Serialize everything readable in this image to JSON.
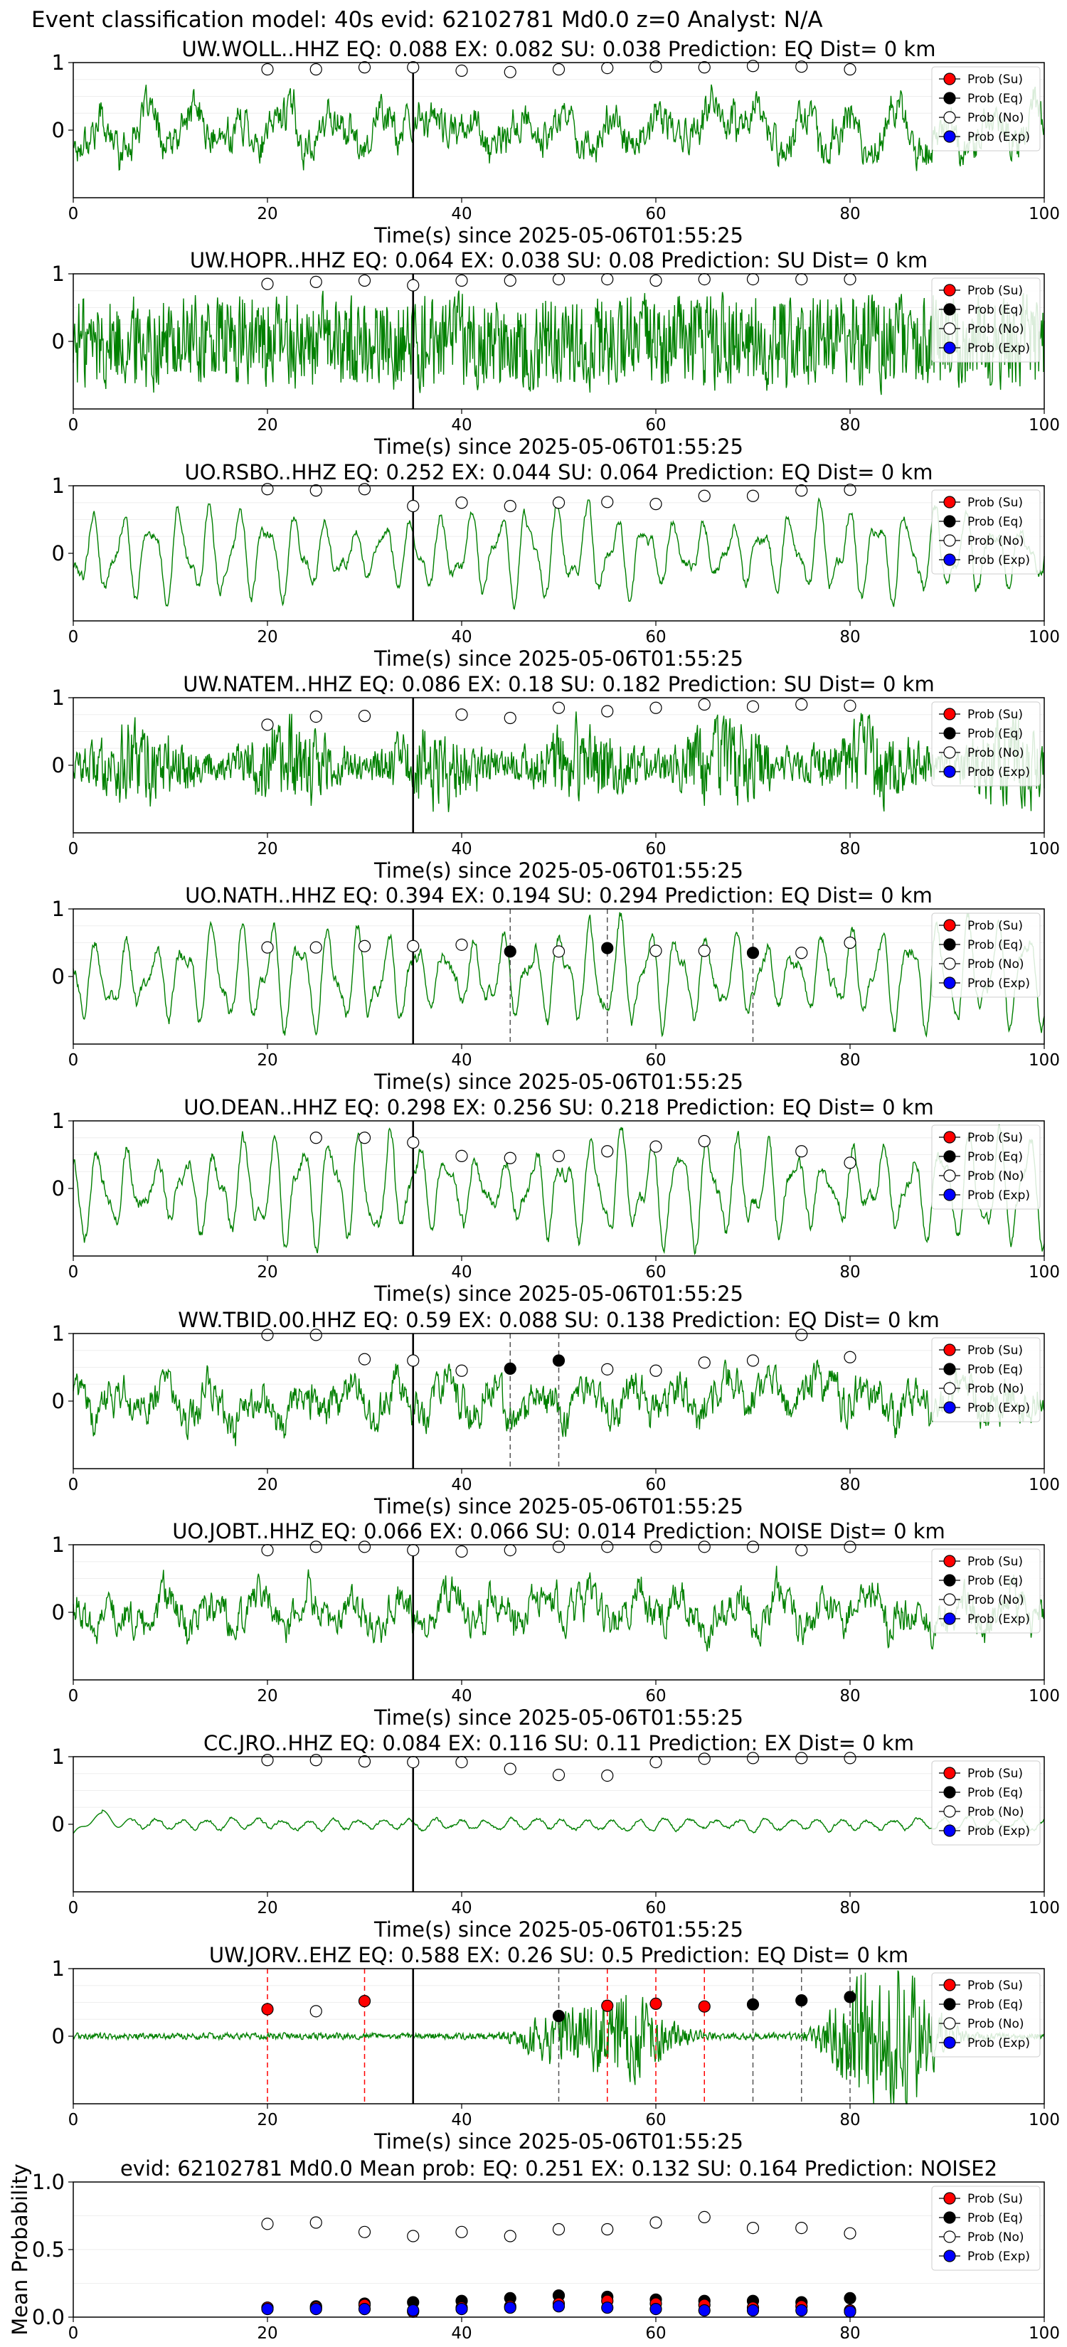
{
  "suptitle": "Event classification model: 40s evid: 62102781 Md0.0 z=0 Analyst: N/A",
  "xlabel": "Time(s) since 2025-05-06T01:55:25",
  "legend": [
    "Prob (Su)",
    "Prob (Eq)",
    "Prob (No)",
    "Prob (Exp)"
  ],
  "colors": {
    "su": "#ff0000",
    "eq": "#000000",
    "no": "#ffffff",
    "exp": "#0000ff",
    "trace": "#008000",
    "pick": "#000000",
    "grid": "#eeeeee"
  },
  "chart_data": [
    {
      "type": "line",
      "station": "UW.WOLL..HHZ",
      "title": "UW.WOLL..HHZ   EQ: 0.088  EX: 0.082  SU: 0.038   Prediction: EQ    Dist= 0 km",
      "xlim": [
        0,
        100
      ],
      "ylim": [
        -1,
        1
      ],
      "yticks": [
        0,
        1
      ],
      "xticks": [
        0,
        20,
        40,
        60,
        80,
        100
      ],
      "pick_time": 35,
      "trace_style": "broadband_noise",
      "amplitude": 0.8,
      "probs": [
        {
          "t": 20,
          "class": "No",
          "p": 0.9
        },
        {
          "t": 25,
          "class": "No",
          "p": 0.9
        },
        {
          "t": 30,
          "class": "No",
          "p": 0.93
        },
        {
          "t": 35,
          "class": "No",
          "p": 0.93
        },
        {
          "t": 40,
          "class": "No",
          "p": 0.88
        },
        {
          "t": 45,
          "class": "No",
          "p": 0.86
        },
        {
          "t": 50,
          "class": "No",
          "p": 0.9
        },
        {
          "t": 55,
          "class": "No",
          "p": 0.92
        },
        {
          "t": 60,
          "class": "No",
          "p": 0.94
        },
        {
          "t": 65,
          "class": "No",
          "p": 0.93
        },
        {
          "t": 70,
          "class": "No",
          "p": 0.95
        },
        {
          "t": 75,
          "class": "No",
          "p": 0.94
        },
        {
          "t": 80,
          "class": "No",
          "p": 0.9
        }
      ]
    },
    {
      "type": "line",
      "station": "UW.HOPR..HHZ",
      "title": "UW.HOPR..HHZ   EQ: 0.064  EX: 0.038  SU: 0.08   Prediction: SU    Dist= 0 km",
      "xlim": [
        0,
        100
      ],
      "ylim": [
        -1,
        1
      ],
      "yticks": [
        0,
        1
      ],
      "xticks": [
        0,
        20,
        40,
        60,
        80,
        100
      ],
      "pick_time": 35,
      "trace_style": "dense_noise",
      "amplitude": 0.9,
      "probs": [
        {
          "t": 20,
          "class": "No",
          "p": 0.85
        },
        {
          "t": 25,
          "class": "No",
          "p": 0.88
        },
        {
          "t": 30,
          "class": "No",
          "p": 0.9
        },
        {
          "t": 35,
          "class": "No",
          "p": 0.83
        },
        {
          "t": 40,
          "class": "No",
          "p": 0.9
        },
        {
          "t": 45,
          "class": "No",
          "p": 0.9
        },
        {
          "t": 50,
          "class": "No",
          "p": 0.92
        },
        {
          "t": 55,
          "class": "No",
          "p": 0.92
        },
        {
          "t": 60,
          "class": "No",
          "p": 0.9
        },
        {
          "t": 65,
          "class": "No",
          "p": 0.92
        },
        {
          "t": 70,
          "class": "No",
          "p": 0.92
        },
        {
          "t": 75,
          "class": "No",
          "p": 0.92
        },
        {
          "t": 80,
          "class": "No",
          "p": 0.92
        }
      ]
    },
    {
      "type": "line",
      "station": "UO.RSBO..HHZ",
      "title": "UO.RSBO..HHZ   EQ: 0.252  EX: 0.044  SU: 0.064   Prediction: EQ    Dist= 0 km",
      "xlim": [
        0,
        100
      ],
      "ylim": [
        -1,
        1
      ],
      "yticks": [
        0,
        1
      ],
      "xticks": [
        0,
        20,
        40,
        60,
        80,
        100
      ],
      "pick_time": 35,
      "trace_style": "smooth_oscillation",
      "amplitude": 0.7,
      "probs": [
        {
          "t": 20,
          "class": "No",
          "p": 0.95
        },
        {
          "t": 25,
          "class": "No",
          "p": 0.93
        },
        {
          "t": 30,
          "class": "No",
          "p": 0.95
        },
        {
          "t": 35,
          "class": "No",
          "p": 0.7
        },
        {
          "t": 40,
          "class": "No",
          "p": 0.75
        },
        {
          "t": 45,
          "class": "No",
          "p": 0.7
        },
        {
          "t": 50,
          "class": "No",
          "p": 0.75
        },
        {
          "t": 55,
          "class": "No",
          "p": 0.76
        },
        {
          "t": 60,
          "class": "No",
          "p": 0.73
        },
        {
          "t": 65,
          "class": "No",
          "p": 0.85
        },
        {
          "t": 70,
          "class": "No",
          "p": 0.85
        },
        {
          "t": 75,
          "class": "No",
          "p": 0.93
        },
        {
          "t": 80,
          "class": "No",
          "p": 0.94
        }
      ]
    },
    {
      "type": "line",
      "station": "UW.NATEM..HHZ",
      "title": "UW.NATEM..HHZ   EQ: 0.086  EX: 0.18  SU: 0.182   Prediction: SU    Dist= 0 km",
      "xlim": [
        0,
        100
      ],
      "ylim": [
        -1,
        1
      ],
      "yticks": [
        0,
        1
      ],
      "xticks": [
        0,
        20,
        40,
        60,
        80,
        100
      ],
      "pick_time": 35,
      "trace_style": "bursty_noise",
      "amplitude": 0.75,
      "probs": [
        {
          "t": 20,
          "class": "No",
          "p": 0.6
        },
        {
          "t": 25,
          "class": "No",
          "p": 0.72
        },
        {
          "t": 30,
          "class": "No",
          "p": 0.73
        },
        {
          "t": 40,
          "class": "No",
          "p": 0.75
        },
        {
          "t": 45,
          "class": "No",
          "p": 0.7
        },
        {
          "t": 50,
          "class": "No",
          "p": 0.85
        },
        {
          "t": 55,
          "class": "No",
          "p": 0.8
        },
        {
          "t": 60,
          "class": "No",
          "p": 0.85
        },
        {
          "t": 65,
          "class": "No",
          "p": 0.9
        },
        {
          "t": 70,
          "class": "No",
          "p": 0.87
        },
        {
          "t": 75,
          "class": "No",
          "p": 0.9
        },
        {
          "t": 80,
          "class": "No",
          "p": 0.88
        }
      ]
    },
    {
      "type": "line",
      "station": "UO.NATH..HHZ",
      "title": "UO.NATH..HHZ   EQ: 0.394  EX: 0.194  SU: 0.294   Prediction: EQ    Dist= 0 km",
      "xlim": [
        0,
        100
      ],
      "ylim": [
        -1,
        1
      ],
      "yticks": [
        0,
        1
      ],
      "xticks": [
        0,
        20,
        40,
        60,
        80,
        100
      ],
      "pick_time": 35,
      "trace_style": "smooth_oscillation",
      "amplitude": 0.8,
      "dashed": [
        {
          "t": 45,
          "class": "Eq"
        },
        {
          "t": 55,
          "class": "Eq"
        },
        {
          "t": 70,
          "class": "Eq"
        }
      ],
      "probs": [
        {
          "t": 20,
          "class": "No",
          "p": 0.43
        },
        {
          "t": 25,
          "class": "No",
          "p": 0.43
        },
        {
          "t": 30,
          "class": "No",
          "p": 0.45
        },
        {
          "t": 35,
          "class": "No",
          "p": 0.45
        },
        {
          "t": 40,
          "class": "No",
          "p": 0.47
        },
        {
          "t": 45,
          "class": "Eq",
          "p": 0.37
        },
        {
          "t": 50,
          "class": "No",
          "p": 0.37
        },
        {
          "t": 55,
          "class": "Eq",
          "p": 0.42
        },
        {
          "t": 60,
          "class": "No",
          "p": 0.38
        },
        {
          "t": 65,
          "class": "No",
          "p": 0.38
        },
        {
          "t": 70,
          "class": "Eq",
          "p": 0.35
        },
        {
          "t": 75,
          "class": "No",
          "p": 0.35
        },
        {
          "t": 80,
          "class": "No",
          "p": 0.5
        }
      ]
    },
    {
      "type": "line",
      "station": "UO.DEAN..HHZ",
      "title": "UO.DEAN..HHZ   EQ: 0.298  EX: 0.256  SU: 0.218   Prediction: EQ    Dist= 0 km",
      "xlim": [
        0,
        100
      ],
      "ylim": [
        -1,
        1
      ],
      "yticks": [
        0,
        1
      ],
      "xticks": [
        0,
        20,
        40,
        60,
        80,
        100
      ],
      "pick_time": 35,
      "trace_style": "smooth_oscillation",
      "amplitude": 0.85,
      "probs": [
        {
          "t": 25,
          "class": "No",
          "p": 0.75
        },
        {
          "t": 30,
          "class": "No",
          "p": 0.75
        },
        {
          "t": 35,
          "class": "No",
          "p": 0.68
        },
        {
          "t": 40,
          "class": "No",
          "p": 0.48
        },
        {
          "t": 45,
          "class": "No",
          "p": 0.45
        },
        {
          "t": 50,
          "class": "No",
          "p": 0.48
        },
        {
          "t": 55,
          "class": "No",
          "p": 0.55
        },
        {
          "t": 60,
          "class": "No",
          "p": 0.62
        },
        {
          "t": 65,
          "class": "No",
          "p": 0.7
        },
        {
          "t": 75,
          "class": "No",
          "p": 0.55
        },
        {
          "t": 80,
          "class": "No",
          "p": 0.38
        }
      ]
    },
    {
      "type": "line",
      "station": "WW.TBID.00.HHZ",
      "title": "WW.TBID.00.HHZ   EQ: 0.59  EX: 0.088  SU: 0.138   Prediction: EQ    Dist= 0 km",
      "xlim": [
        0,
        100
      ],
      "ylim": [
        -1,
        1
      ],
      "yticks": [
        0,
        1
      ],
      "xticks": [
        0,
        20,
        40,
        60,
        80,
        100
      ],
      "pick_time": 35,
      "trace_style": "broadband_noise",
      "amplitude": 0.8,
      "dashed": [
        {
          "t": 45,
          "class": "Eq"
        },
        {
          "t": 50,
          "class": "Eq"
        }
      ],
      "probs": [
        {
          "t": 20,
          "class": "No",
          "p": 0.98
        },
        {
          "t": 25,
          "class": "No",
          "p": 0.98
        },
        {
          "t": 30,
          "class": "No",
          "p": 0.62
        },
        {
          "t": 35,
          "class": "No",
          "p": 0.6
        },
        {
          "t": 40,
          "class": "No",
          "p": 0.45
        },
        {
          "t": 45,
          "class": "Eq",
          "p": 0.48
        },
        {
          "t": 50,
          "class": "Eq",
          "p": 0.6
        },
        {
          "t": 55,
          "class": "No",
          "p": 0.47
        },
        {
          "t": 60,
          "class": "No",
          "p": 0.45
        },
        {
          "t": 65,
          "class": "No",
          "p": 0.57
        },
        {
          "t": 70,
          "class": "No",
          "p": 0.6
        },
        {
          "t": 75,
          "class": "No",
          "p": 0.98
        },
        {
          "t": 80,
          "class": "No",
          "p": 0.65
        }
      ]
    },
    {
      "type": "line",
      "station": "UO.JOBT..HHZ",
      "title": "UO.JOBT..HHZ   EQ: 0.066  EX: 0.066  SU: 0.014   Prediction: NOISE    Dist= 0 km",
      "xlim": [
        0,
        100
      ],
      "ylim": [
        -1,
        1
      ],
      "yticks": [
        0,
        1
      ],
      "xticks": [
        0,
        20,
        40,
        60,
        80,
        100
      ],
      "pick_time": 35,
      "trace_style": "broadband_noise",
      "amplitude": 0.75,
      "probs": [
        {
          "t": 20,
          "class": "No",
          "p": 0.92
        },
        {
          "t": 25,
          "class": "No",
          "p": 0.97
        },
        {
          "t": 30,
          "class": "No",
          "p": 0.97
        },
        {
          "t": 35,
          "class": "No",
          "p": 0.92
        },
        {
          "t": 40,
          "class": "No",
          "p": 0.9
        },
        {
          "t": 45,
          "class": "No",
          "p": 0.92
        },
        {
          "t": 50,
          "class": "No",
          "p": 0.97
        },
        {
          "t": 55,
          "class": "No",
          "p": 0.97
        },
        {
          "t": 60,
          "class": "No",
          "p": 0.97
        },
        {
          "t": 65,
          "class": "No",
          "p": 0.97
        },
        {
          "t": 70,
          "class": "No",
          "p": 0.97
        },
        {
          "t": 75,
          "class": "No",
          "p": 0.92
        },
        {
          "t": 80,
          "class": "No",
          "p": 0.97
        }
      ]
    },
    {
      "type": "line",
      "station": "CC.JRO..HHZ",
      "title": "CC.JRO..HHZ   EQ: 0.084  EX: 0.116  SU: 0.11   Prediction: EX    Dist= 0 km",
      "xlim": [
        0,
        100
      ],
      "ylim": [
        -1,
        1
      ],
      "yticks": [
        0,
        1
      ],
      "xticks": [
        0,
        20,
        40,
        60,
        80,
        100
      ],
      "pick_time": 35,
      "trace_style": "quiet_with_spike",
      "amplitude": 0.15,
      "probs": [
        {
          "t": 20,
          "class": "No",
          "p": 0.95
        },
        {
          "t": 25,
          "class": "No",
          "p": 0.95
        },
        {
          "t": 30,
          "class": "No",
          "p": 0.93
        },
        {
          "t": 35,
          "class": "No",
          "p": 0.92
        },
        {
          "t": 40,
          "class": "No",
          "p": 0.92
        },
        {
          "t": 45,
          "class": "No",
          "p": 0.82
        },
        {
          "t": 50,
          "class": "No",
          "p": 0.73
        },
        {
          "t": 55,
          "class": "No",
          "p": 0.72
        },
        {
          "t": 60,
          "class": "No",
          "p": 0.92
        },
        {
          "t": 65,
          "class": "No",
          "p": 0.97
        },
        {
          "t": 70,
          "class": "No",
          "p": 0.98
        },
        {
          "t": 75,
          "class": "No",
          "p": 0.98
        },
        {
          "t": 80,
          "class": "No",
          "p": 0.98
        }
      ]
    },
    {
      "type": "line",
      "station": "UW.JORV..EHZ",
      "title": "UW.JORV..EHZ   EQ: 0.588  EX: 0.26  SU: 0.5   Prediction: EQ    Dist= 0 km",
      "xlim": [
        0,
        100
      ],
      "ylim": [
        -1,
        1
      ],
      "yticks": [
        0,
        1
      ],
      "xticks": [
        0,
        20,
        40,
        60,
        80,
        100
      ],
      "pick_time": 35,
      "trace_style": "event_bursts",
      "amplitude": 0.95,
      "dashed": [
        {
          "t": 20,
          "class": "Su"
        },
        {
          "t": 30,
          "class": "Su"
        },
        {
          "t": 50,
          "class": "Eq"
        },
        {
          "t": 55,
          "class": "Su"
        },
        {
          "t": 60,
          "class": "Su"
        },
        {
          "t": 65,
          "class": "Su"
        },
        {
          "t": 70,
          "class": "Eq"
        },
        {
          "t": 75,
          "class": "Eq"
        },
        {
          "t": 80,
          "class": "Eq"
        }
      ],
      "probs": [
        {
          "t": 20,
          "class": "Su",
          "p": 0.4
        },
        {
          "t": 25,
          "class": "No",
          "p": 0.37
        },
        {
          "t": 30,
          "class": "Su",
          "p": 0.52
        },
        {
          "t": 50,
          "class": "Eq",
          "p": 0.3
        },
        {
          "t": 55,
          "class": "Su",
          "p": 0.45
        },
        {
          "t": 60,
          "class": "Su",
          "p": 0.48
        },
        {
          "t": 65,
          "class": "Su",
          "p": 0.44
        },
        {
          "t": 70,
          "class": "Eq",
          "p": 0.47
        },
        {
          "t": 75,
          "class": "Eq",
          "p": 0.53
        },
        {
          "t": 80,
          "class": "Eq",
          "p": 0.58
        }
      ]
    },
    {
      "type": "scatter",
      "station": "mean",
      "title": "evid: 62102781  Md0.0   Mean prob:   EQ: 0.251  EX: 0.132  SU: 0.164   Prediction: NOISE2",
      "ylabel": "Mean Probability",
      "xlim": [
        0,
        100
      ],
      "ylim": [
        0,
        1
      ],
      "yticks": [
        0,
        0.5,
        1.0
      ],
      "ytick_labels": [
        "0.0",
        "0.5",
        "1.0"
      ],
      "xticks": [
        0,
        20,
        40,
        60,
        80,
        100
      ],
      "x": [
        20,
        25,
        30,
        35,
        40,
        45,
        50,
        55,
        60,
        65,
        70,
        75,
        80
      ],
      "series": [
        {
          "class": "No",
          "values": [
            0.69,
            0.7,
            0.63,
            0.6,
            0.63,
            0.6,
            0.65,
            0.65,
            0.7,
            0.74,
            0.66,
            0.66,
            0.62
          ]
        },
        {
          "class": "Eq",
          "values": [
            0.07,
            0.08,
            0.1,
            0.11,
            0.12,
            0.14,
            0.16,
            0.15,
            0.13,
            0.12,
            0.12,
            0.11,
            0.14
          ]
        },
        {
          "class": "Su",
          "values": [
            0.07,
            0.07,
            0.09,
            0.04,
            0.07,
            0.08,
            0.1,
            0.12,
            0.1,
            0.09,
            0.07,
            0.08,
            0.05
          ]
        },
        {
          "class": "Exp",
          "values": [
            0.06,
            0.06,
            0.06,
            0.05,
            0.06,
            0.07,
            0.08,
            0.07,
            0.06,
            0.05,
            0.05,
            0.05,
            0.04
          ]
        }
      ]
    }
  ]
}
